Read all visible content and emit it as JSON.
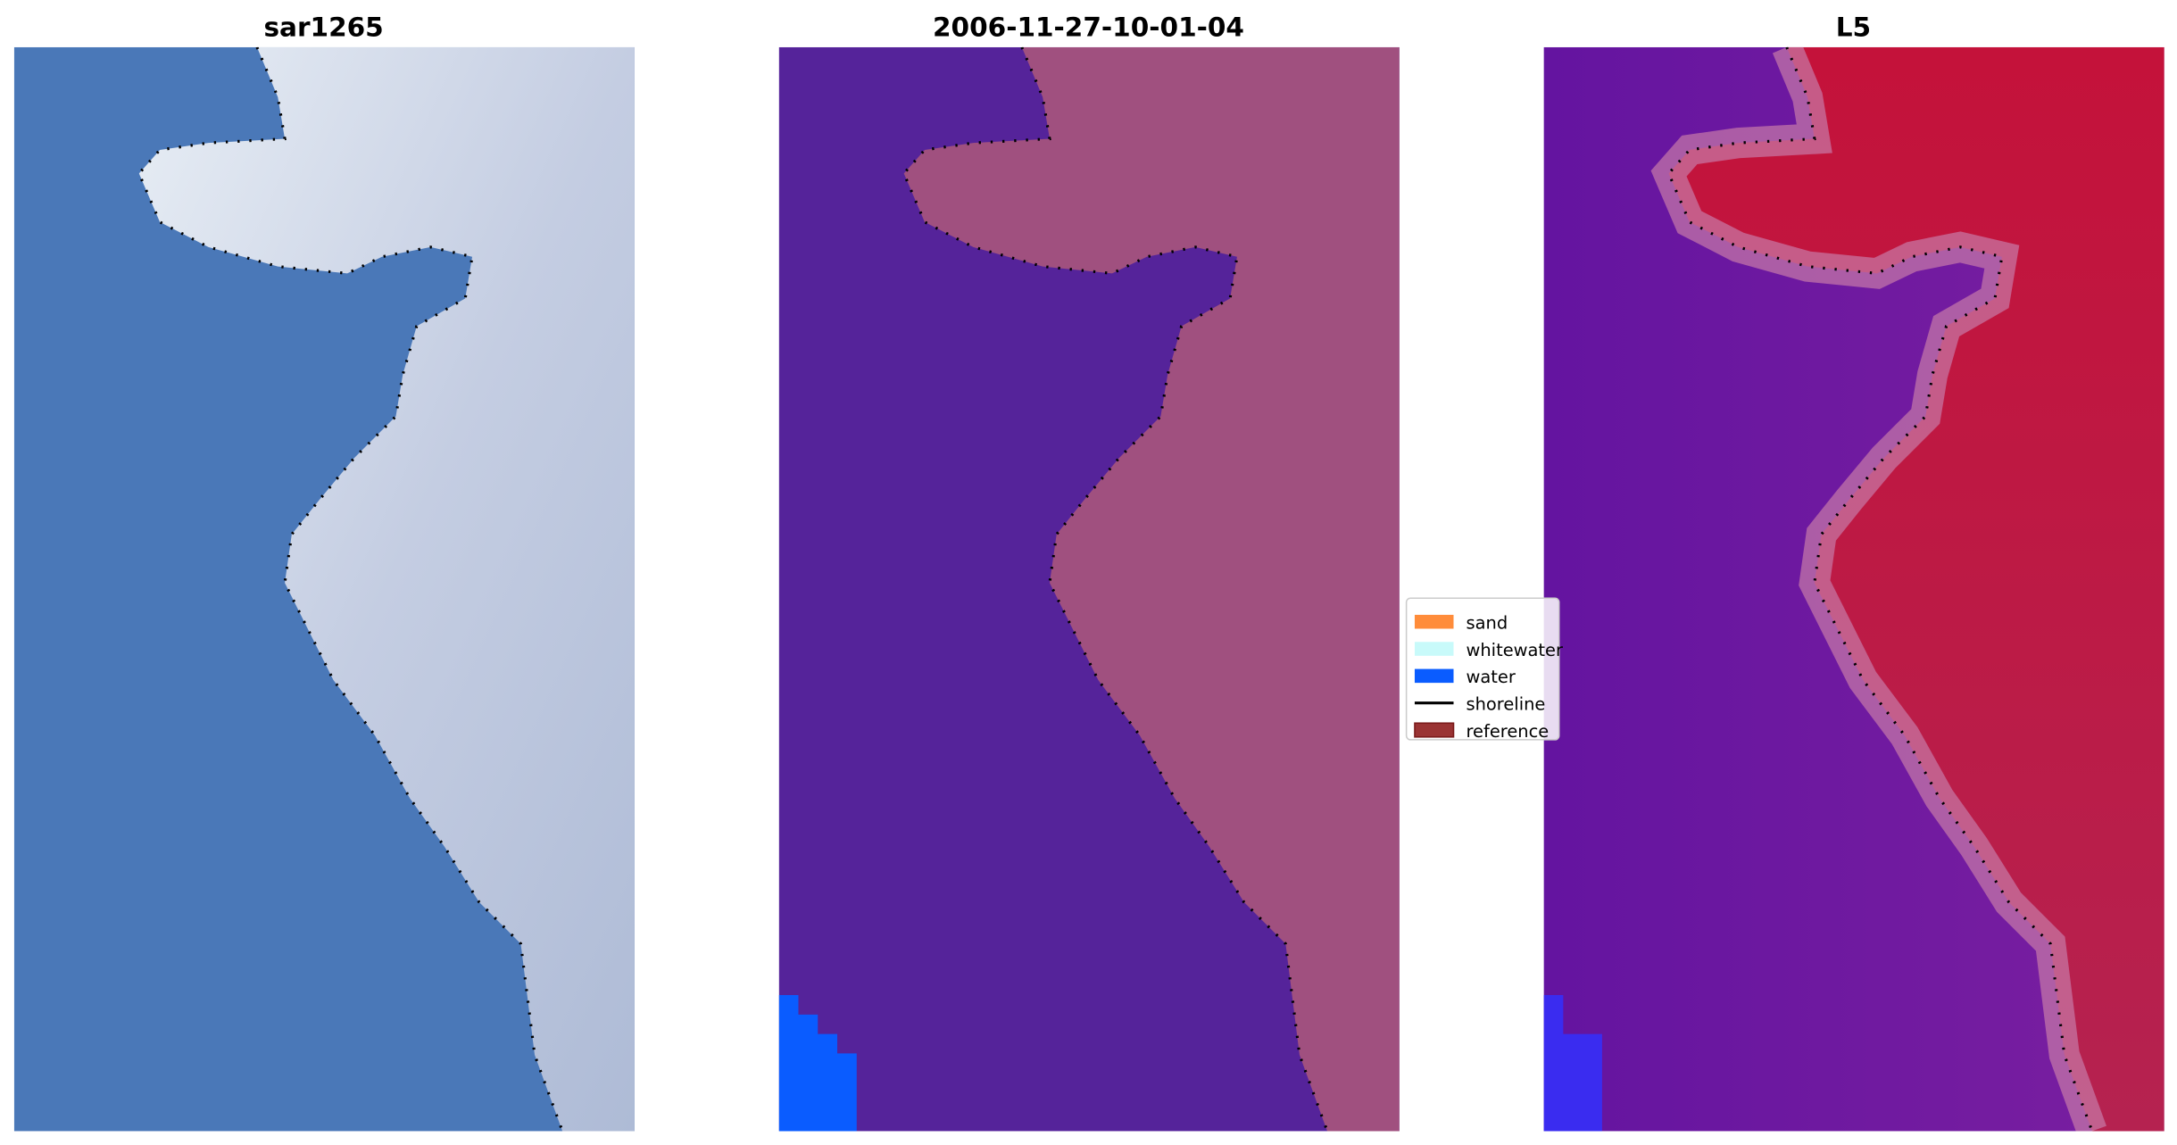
{
  "panels": [
    {
      "title": "sar1265"
    },
    {
      "title": "2006-11-27-10-01-04"
    },
    {
      "title": "L5"
    }
  ],
  "legend": {
    "items": [
      {
        "label": "sand",
        "color": "#ff8c3a",
        "kind": "patch"
      },
      {
        "label": "whitewater",
        "color": "#c8fafa",
        "kind": "patch"
      },
      {
        "label": "water",
        "color": "#0a5cff",
        "kind": "patch"
      },
      {
        "label": "shoreline",
        "color": "#000000",
        "kind": "line"
      },
      {
        "label": "reference",
        "color": "#9a3333",
        "kind": "patch"
      }
    ]
  },
  "colors": {
    "classified_water": "#55239a",
    "classified_land": "#a0507f",
    "rgb_water": "#4a78b8",
    "rgb_land": "#c3cfe0",
    "index_low": "#6a1a9a",
    "index_high": "#c0103a"
  }
}
